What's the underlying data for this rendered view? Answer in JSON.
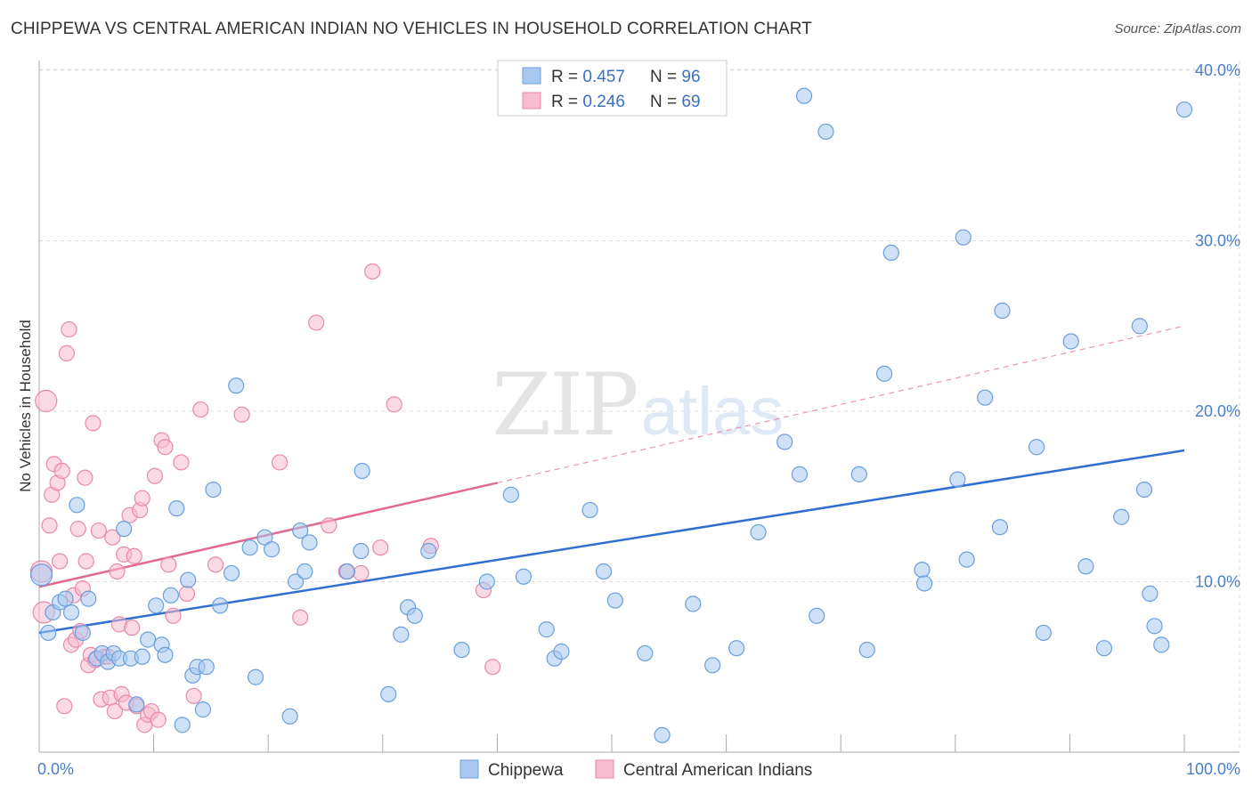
{
  "title": "CHIPPEWA VS CENTRAL AMERICAN INDIAN NO VEHICLES IN HOUSEHOLD CORRELATION CHART",
  "source": "Source: ZipAtlas.com",
  "watermark": {
    "zip": "ZIP",
    "atlas": "atlas"
  },
  "colors": {
    "chippewa_fill": "#a8c8f0",
    "chippewa_stroke": "#6a9fdc",
    "chippewa_line": "#2e6fcf",
    "central_fill": "#f8bcd0",
    "central_stroke": "#e889a8",
    "central_line": "#e06a92",
    "grid": "#dddddd",
    "tick_text": "#4a7ec9"
  },
  "legend": {
    "rows": [
      {
        "r_label": "R = ",
        "r_value": "0.457",
        "n_label": "N = ",
        "n_value": "96"
      },
      {
        "r_label": "R = ",
        "r_value": "0.246",
        "n_label": "N = ",
        "n_value": "69"
      }
    ]
  },
  "bottom_legend": [
    "Chippewa",
    "Central American Indians"
  ],
  "chart_data": {
    "type": "scatter",
    "title": "CHIPPEWA VS CENTRAL AMERICAN INDIAN NO VEHICLES IN HOUSEHOLD CORRELATION CHART",
    "xlabel": "",
    "ylabel": "No Vehicles in Household",
    "xlim": [
      0,
      100
    ],
    "ylim": [
      0,
      41
    ],
    "x_ticks": [
      {
        "value": 0,
        "label": "0.0%"
      },
      {
        "value": 100,
        "label": "100.0%"
      }
    ],
    "y_ticks": [
      {
        "value": 10,
        "label": "10.0%"
      },
      {
        "value": 20,
        "label": "20.0%"
      },
      {
        "value": 30,
        "label": "30.0%"
      },
      {
        "value": 40,
        "label": "40.0%"
      }
    ],
    "grid": true,
    "series": [
      {
        "name": "Chippewa",
        "r": 0.457,
        "n": 96,
        "trend": {
          "x": [
            0,
            100
          ],
          "y": [
            7.0,
            17.7
          ],
          "dashed_after": null
        },
        "points": [
          [
            0.2,
            10.4
          ],
          [
            0.8,
            7.0
          ],
          [
            1.2,
            8.2
          ],
          [
            1.8,
            8.8
          ],
          [
            2.3,
            9.0
          ],
          [
            2.8,
            8.2
          ],
          [
            3.3,
            14.5
          ],
          [
            3.8,
            7.0
          ],
          [
            4.3,
            9.0
          ],
          [
            5.0,
            5.5
          ],
          [
            5.5,
            5.8
          ],
          [
            6.0,
            5.3
          ],
          [
            6.5,
            5.8
          ],
          [
            7.0,
            5.5
          ],
          [
            7.4,
            13.1
          ],
          [
            8.0,
            5.5
          ],
          [
            8.5,
            2.8
          ],
          [
            9.0,
            5.6
          ],
          [
            9.5,
            6.6
          ],
          [
            10.2,
            8.6
          ],
          [
            10.7,
            6.3
          ],
          [
            11.0,
            5.7
          ],
          [
            11.5,
            9.2
          ],
          [
            12.0,
            14.3
          ],
          [
            12.5,
            1.6
          ],
          [
            13.0,
            10.1
          ],
          [
            13.4,
            4.5
          ],
          [
            13.8,
            5.0
          ],
          [
            14.3,
            2.5
          ],
          [
            14.6,
            5.0
          ],
          [
            15.2,
            15.4
          ],
          [
            15.8,
            8.6
          ],
          [
            16.8,
            10.5
          ],
          [
            17.2,
            21.5
          ],
          [
            18.4,
            12.0
          ],
          [
            18.9,
            4.4
          ],
          [
            19.7,
            12.6
          ],
          [
            20.3,
            11.9
          ],
          [
            21.9,
            2.1
          ],
          [
            22.4,
            10.0
          ],
          [
            22.8,
            13.0
          ],
          [
            23.2,
            10.6
          ],
          [
            23.6,
            12.3
          ],
          [
            26.9,
            10.6
          ],
          [
            28.1,
            11.8
          ],
          [
            28.2,
            16.5
          ],
          [
            30.5,
            3.4
          ],
          [
            31.6,
            6.9
          ],
          [
            32.2,
            8.5
          ],
          [
            32.8,
            8.0
          ],
          [
            34.0,
            11.8
          ],
          [
            36.9,
            6.0
          ],
          [
            39.1,
            10.0
          ],
          [
            41.2,
            15.1
          ],
          [
            42.3,
            10.3
          ],
          [
            44.3,
            7.2
          ],
          [
            45.0,
            5.5
          ],
          [
            45.6,
            5.9
          ],
          [
            48.1,
            14.2
          ],
          [
            49.3,
            10.6
          ],
          [
            50.3,
            8.9
          ],
          [
            52.9,
            5.8
          ],
          [
            54.4,
            1.0
          ],
          [
            57.1,
            8.7
          ],
          [
            58.8,
            5.1
          ],
          [
            60.9,
            6.1
          ],
          [
            62.8,
            12.9
          ],
          [
            65.1,
            18.2
          ],
          [
            66.4,
            16.3
          ],
          [
            66.8,
            38.5
          ],
          [
            67.9,
            8.0
          ],
          [
            68.7,
            36.4
          ],
          [
            71.6,
            16.3
          ],
          [
            72.3,
            6.0
          ],
          [
            73.8,
            22.2
          ],
          [
            74.4,
            29.3
          ],
          [
            77.1,
            10.7
          ],
          [
            77.3,
            9.9
          ],
          [
            80.2,
            16.0
          ],
          [
            80.7,
            30.2
          ],
          [
            81.0,
            11.3
          ],
          [
            82.6,
            20.8
          ],
          [
            83.9,
            13.2
          ],
          [
            84.1,
            25.9
          ],
          [
            87.1,
            17.9
          ],
          [
            87.7,
            7.0
          ],
          [
            90.1,
            24.1
          ],
          [
            91.4,
            10.9
          ],
          [
            93.0,
            6.1
          ],
          [
            94.5,
            13.8
          ],
          [
            96.1,
            25.0
          ],
          [
            96.5,
            15.4
          ],
          [
            97.0,
            9.3
          ],
          [
            97.4,
            7.4
          ],
          [
            98.0,
            6.3
          ],
          [
            100.0,
            37.7
          ]
        ]
      },
      {
        "name": "Central American Indians",
        "r": 0.246,
        "n": 69,
        "trend": {
          "x": [
            0,
            40
          ],
          "y": [
            9.7,
            15.8
          ],
          "dashed_to": {
            "x": 100,
            "y": 25.0
          }
        },
        "points": [
          [
            0.2,
            10.6
          ],
          [
            0.4,
            8.2
          ],
          [
            0.6,
            20.6
          ],
          [
            0.9,
            13.3
          ],
          [
            1.1,
            15.1
          ],
          [
            1.3,
            16.9
          ],
          [
            1.6,
            15.8
          ],
          [
            1.8,
            11.2
          ],
          [
            2.0,
            16.5
          ],
          [
            2.2,
            2.7
          ],
          [
            2.4,
            23.4
          ],
          [
            2.6,
            24.8
          ],
          [
            2.8,
            6.3
          ],
          [
            3.0,
            9.2
          ],
          [
            3.2,
            6.6
          ],
          [
            3.4,
            13.1
          ],
          [
            3.6,
            7.1
          ],
          [
            3.8,
            9.6
          ],
          [
            4.0,
            16.1
          ],
          [
            4.1,
            11.2
          ],
          [
            4.3,
            5.1
          ],
          [
            4.5,
            5.7
          ],
          [
            4.7,
            19.3
          ],
          [
            4.9,
            5.4
          ],
          [
            5.2,
            13.0
          ],
          [
            5.4,
            3.1
          ],
          [
            5.7,
            5.6
          ],
          [
            6.0,
            5.6
          ],
          [
            6.2,
            3.2
          ],
          [
            6.4,
            12.6
          ],
          [
            6.6,
            2.4
          ],
          [
            6.8,
            10.6
          ],
          [
            7.0,
            7.5
          ],
          [
            7.2,
            3.4
          ],
          [
            7.4,
            11.6
          ],
          [
            7.6,
            2.9
          ],
          [
            7.9,
            13.9
          ],
          [
            8.1,
            7.3
          ],
          [
            8.3,
            11.5
          ],
          [
            8.5,
            2.7
          ],
          [
            8.8,
            14.2
          ],
          [
            9.0,
            14.9
          ],
          [
            9.2,
            1.6
          ],
          [
            9.5,
            2.2
          ],
          [
            9.8,
            2.4
          ],
          [
            10.1,
            16.2
          ],
          [
            10.4,
            1.9
          ],
          [
            10.7,
            18.3
          ],
          [
            11.0,
            17.9
          ],
          [
            11.3,
            11.0
          ],
          [
            11.7,
            8.0
          ],
          [
            12.4,
            17.0
          ],
          [
            12.9,
            9.3
          ],
          [
            13.5,
            3.3
          ],
          [
            14.1,
            20.1
          ],
          [
            15.4,
            11.0
          ],
          [
            17.7,
            19.8
          ],
          [
            21.0,
            17.0
          ],
          [
            22.8,
            7.9
          ],
          [
            24.2,
            25.2
          ],
          [
            25.3,
            13.3
          ],
          [
            26.8,
            10.6
          ],
          [
            28.1,
            10.5
          ],
          [
            29.1,
            28.2
          ],
          [
            29.8,
            12.0
          ],
          [
            31.0,
            20.4
          ],
          [
            34.2,
            12.1
          ],
          [
            38.8,
            9.5
          ],
          [
            39.6,
            5.0
          ]
        ]
      }
    ]
  }
}
